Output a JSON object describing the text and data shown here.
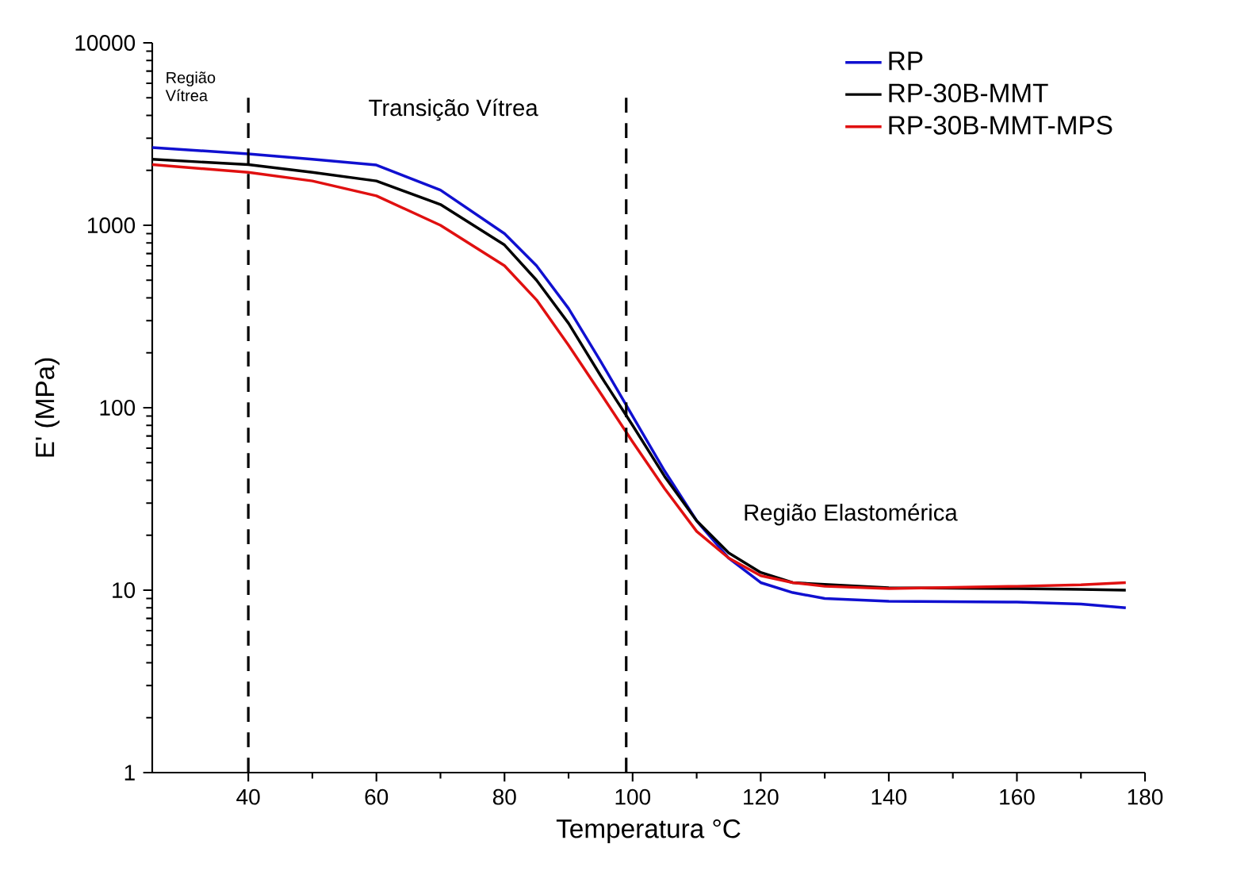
{
  "chart_data": {
    "type": "line",
    "xlabel": "Temperatura °C",
    "ylabel": "E' (MPa)",
    "log": "y",
    "xlim": [
      25,
      180
    ],
    "xticks": [
      40,
      60,
      80,
      100,
      120,
      140,
      160,
      180
    ],
    "ylim": [
      1,
      10000
    ],
    "yticks": [
      1,
      10,
      100,
      1000,
      10000
    ],
    "legend": "top right",
    "grid": false,
    "line_style": "solid",
    "marker": "none",
    "x": [
      25,
      40,
      50,
      60,
      70,
      80,
      85,
      90,
      95,
      100,
      105,
      110,
      115,
      120,
      125,
      130,
      140,
      160,
      170,
      177
    ],
    "series": [
      {
        "name": "RP",
        "color": "#1010d0",
        "values": [
          2670,
          2460,
          2300,
          2140,
          1560,
          900,
          600,
          350,
          180,
          90,
          45,
          24,
          15,
          11,
          9.7,
          9.0,
          8.7,
          8.6,
          8.4,
          8.0
        ]
      },
      {
        "name": "RP-30B-MMT",
        "color": "#000000",
        "values": [
          2300,
          2150,
          1950,
          1750,
          1300,
          780,
          500,
          290,
          150,
          80,
          42,
          24,
          16,
          12.5,
          11,
          null,
          10.3,
          10.2,
          10.1,
          10.0
        ]
      },
      {
        "name": "RP-30B-MMT-MPS",
        "color": "#e01010",
        "values": [
          2150,
          1950,
          1750,
          1450,
          1000,
          600,
          390,
          220,
          120,
          65,
          36,
          21,
          15,
          12,
          11,
          10.5,
          10.2,
          10.5,
          10.7,
          11.0
        ]
      }
    ],
    "ref_lines": [
      {
        "axis": "x",
        "value": 40,
        "line_style": "dashed",
        "color": "#000000"
      },
      {
        "axis": "x",
        "value": 99,
        "line_style": "dashed",
        "color": "#000000"
      }
    ],
    "annotations": [
      "Região Vítrea",
      "Transição Vítrea",
      "Região Elastomérica"
    ]
  }
}
